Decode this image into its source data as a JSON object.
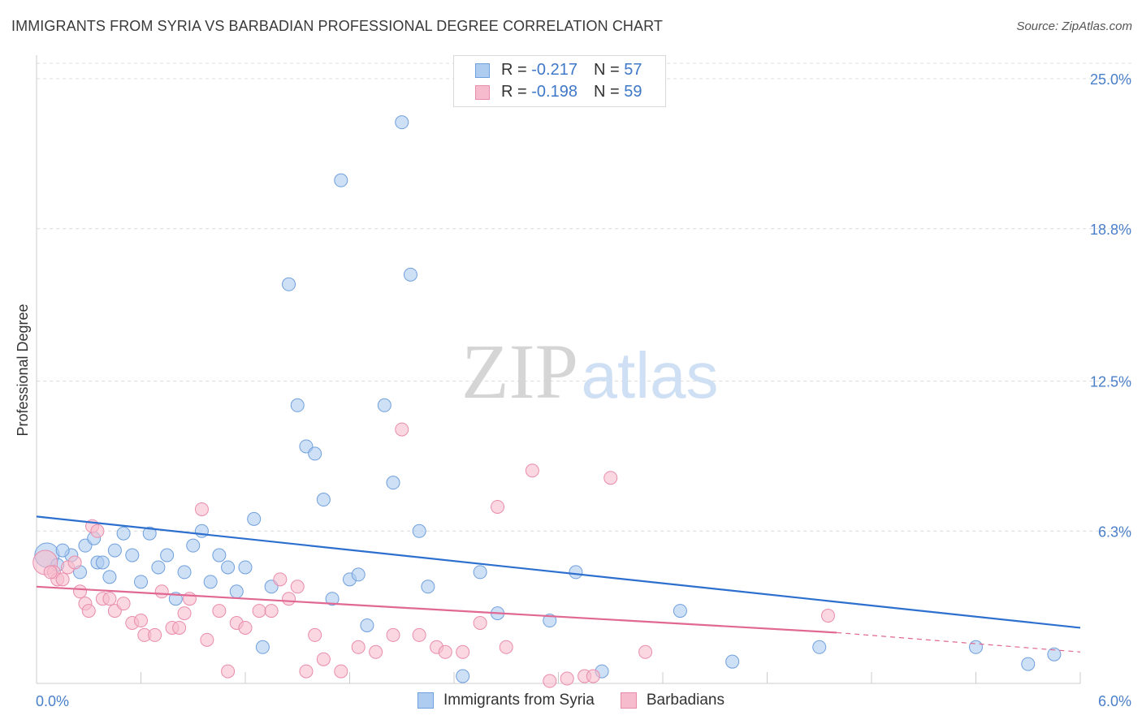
{
  "header": {
    "title": "IMMIGRANTS FROM SYRIA VS BARBADIAN PROFESSIONAL DEGREE CORRELATION CHART",
    "source": "Source: ZipAtlas.com"
  },
  "watermark": {
    "zip": "ZIP",
    "atlas": "atlas"
  },
  "legend": {
    "rows": [
      {
        "r_label": "R = ",
        "r_value": "-0.217",
        "n_label": "N = ",
        "n_value": "57"
      },
      {
        "r_label": "R = ",
        "r_value": "-0.198",
        "n_label": "N = ",
        "n_value": "59"
      }
    ]
  },
  "colors": {
    "blue_fill": "#aecbf0",
    "blue_stroke": "#6f9fdc",
    "blue_line": "#2d6fce",
    "pink_fill": "#f6bccd",
    "pink_stroke": "#e98cab",
    "pink_line": "#e06893",
    "grid": "#dcdcdc",
    "tick_label": "#4a7fc9"
  },
  "chart_data": {
    "type": "scatter",
    "ylabel": "Professional Degree",
    "xlim": [
      0,
      6
    ],
    "ylim": [
      0,
      25
    ],
    "x_tick_labels": [
      {
        "value": 0,
        "label": "0.0%"
      },
      {
        "value": 6,
        "label": "6.0%"
      }
    ],
    "y_tick_labels": [
      {
        "value": 6.3,
        "label": "6.3%"
      },
      {
        "value": 12.5,
        "label": "12.5%"
      },
      {
        "value": 18.8,
        "label": "18.8%"
      },
      {
        "value": 25.0,
        "label": "25.0%"
      }
    ],
    "grid": "horizontal-dashed",
    "legend_position": "top-center",
    "series": [
      {
        "name": "Immigrants from Syria",
        "color": "blue",
        "trend": {
          "x0": 0,
          "y0": 6.9,
          "x1": 6,
          "y1": 2.3
        },
        "points": [
          [
            0.06,
            5.3,
            16
          ],
          [
            0.12,
            4.9,
            10
          ],
          [
            0.2,
            5.3,
            10
          ],
          [
            0.25,
            4.6,
            10
          ],
          [
            0.28,
            5.7,
            10
          ],
          [
            0.35,
            5.0,
            10
          ],
          [
            0.38,
            5.0,
            10
          ],
          [
            0.42,
            4.4,
            10
          ],
          [
            0.5,
            6.2,
            10
          ],
          [
            0.55,
            5.3,
            10
          ],
          [
            0.6,
            4.2,
            10
          ],
          [
            0.65,
            6.2,
            10
          ],
          [
            0.7,
            4.8,
            10
          ],
          [
            0.75,
            5.3,
            10
          ],
          [
            0.8,
            3.5,
            10
          ],
          [
            0.85,
            4.6,
            10
          ],
          [
            0.9,
            5.7,
            10
          ],
          [
            0.95,
            6.3,
            10
          ],
          [
            1.0,
            4.2,
            10
          ],
          [
            1.05,
            5.3,
            10
          ],
          [
            1.1,
            4.8,
            10
          ],
          [
            1.15,
            3.8,
            10
          ],
          [
            1.2,
            4.8,
            10
          ],
          [
            1.25,
            6.8,
            10
          ],
          [
            1.3,
            1.5,
            10
          ],
          [
            1.35,
            4.0,
            10
          ],
          [
            1.45,
            16.5,
            10
          ],
          [
            1.5,
            11.5,
            10
          ],
          [
            1.55,
            9.8,
            10
          ],
          [
            1.6,
            9.5,
            10
          ],
          [
            1.65,
            7.6,
            10
          ],
          [
            1.7,
            3.5,
            10
          ],
          [
            1.75,
            20.8,
            10
          ],
          [
            1.8,
            4.3,
            10
          ],
          [
            1.85,
            4.5,
            10
          ],
          [
            1.9,
            2.4,
            10
          ],
          [
            2.0,
            11.5,
            10
          ],
          [
            2.05,
            8.3,
            10
          ],
          [
            2.1,
            23.2,
            10
          ],
          [
            2.15,
            16.9,
            10
          ],
          [
            2.2,
            6.3,
            10
          ],
          [
            2.25,
            4.0,
            10
          ],
          [
            2.45,
            0.3,
            10
          ],
          [
            2.55,
            4.6,
            10
          ],
          [
            2.65,
            2.9,
            10
          ],
          [
            2.95,
            2.6,
            10
          ],
          [
            3.1,
            4.6,
            10
          ],
          [
            3.25,
            0.5,
            10
          ],
          [
            3.7,
            3.0,
            10
          ],
          [
            4.0,
            0.9,
            10
          ],
          [
            4.5,
            1.5,
            10
          ],
          [
            5.4,
            1.5,
            10
          ],
          [
            5.7,
            0.8,
            10
          ],
          [
            5.85,
            1.2,
            10
          ],
          [
            0.15,
            5.5,
            10
          ],
          [
            0.33,
            6.0,
            10
          ],
          [
            0.45,
            5.5,
            10
          ]
        ]
      },
      {
        "name": "Barbadians",
        "color": "pink",
        "trend": {
          "x0": 0,
          "y0": 4.0,
          "x1": 4.6,
          "y1": 2.1
        },
        "trend_dashed": {
          "x0": 4.6,
          "y0": 2.1,
          "x1": 6,
          "y1": 1.3
        },
        "points": [
          [
            0.05,
            5.0,
            16
          ],
          [
            0.1,
            4.6,
            10
          ],
          [
            0.12,
            4.3,
            10
          ],
          [
            0.15,
            4.3,
            10
          ],
          [
            0.18,
            4.8,
            10
          ],
          [
            0.22,
            5.0,
            10
          ],
          [
            0.25,
            3.8,
            10
          ],
          [
            0.28,
            3.3,
            10
          ],
          [
            0.3,
            3.0,
            10
          ],
          [
            0.32,
            6.5,
            10
          ],
          [
            0.35,
            6.3,
            10
          ],
          [
            0.38,
            3.5,
            10
          ],
          [
            0.42,
            3.5,
            10
          ],
          [
            0.45,
            3.0,
            10
          ],
          [
            0.5,
            3.3,
            10
          ],
          [
            0.55,
            2.5,
            10
          ],
          [
            0.6,
            2.6,
            10
          ],
          [
            0.62,
            2.0,
            10
          ],
          [
            0.68,
            2.0,
            10
          ],
          [
            0.72,
            3.8,
            10
          ],
          [
            0.78,
            2.3,
            10
          ],
          [
            0.82,
            2.3,
            10
          ],
          [
            0.85,
            2.9,
            10
          ],
          [
            0.88,
            3.5,
            10
          ],
          [
            0.95,
            7.2,
            10
          ],
          [
            0.98,
            1.8,
            10
          ],
          [
            1.05,
            3.0,
            10
          ],
          [
            1.1,
            0.5,
            10
          ],
          [
            1.15,
            2.5,
            10
          ],
          [
            1.2,
            2.3,
            10
          ],
          [
            1.28,
            3.0,
            10
          ],
          [
            1.35,
            3.0,
            10
          ],
          [
            1.4,
            4.3,
            10
          ],
          [
            1.45,
            3.5,
            10
          ],
          [
            1.5,
            4.0,
            10
          ],
          [
            1.55,
            0.5,
            10
          ],
          [
            1.6,
            2.0,
            10
          ],
          [
            1.65,
            1.0,
            10
          ],
          [
            1.75,
            0.5,
            10
          ],
          [
            1.85,
            1.5,
            10
          ],
          [
            1.95,
            1.3,
            10
          ],
          [
            2.05,
            2.0,
            10
          ],
          [
            2.1,
            10.5,
            10
          ],
          [
            2.2,
            2.0,
            10
          ],
          [
            2.3,
            1.5,
            10
          ],
          [
            2.35,
            1.3,
            10
          ],
          [
            2.45,
            1.3,
            10
          ],
          [
            2.55,
            2.5,
            10
          ],
          [
            2.65,
            7.3,
            10
          ],
          [
            2.7,
            1.5,
            10
          ],
          [
            2.85,
            8.8,
            10
          ],
          [
            2.95,
            0.1,
            10
          ],
          [
            3.05,
            0.2,
            10
          ],
          [
            3.15,
            0.3,
            10
          ],
          [
            3.2,
            0.3,
            10
          ],
          [
            3.3,
            8.5,
            10
          ],
          [
            3.5,
            1.3,
            10
          ],
          [
            4.55,
            2.8,
            10
          ],
          [
            0.08,
            4.6,
            10
          ]
        ]
      }
    ]
  },
  "bottom_legend": [
    {
      "label": "Immigrants from Syria",
      "color": "blue"
    },
    {
      "label": "Barbadians",
      "color": "pink"
    }
  ]
}
